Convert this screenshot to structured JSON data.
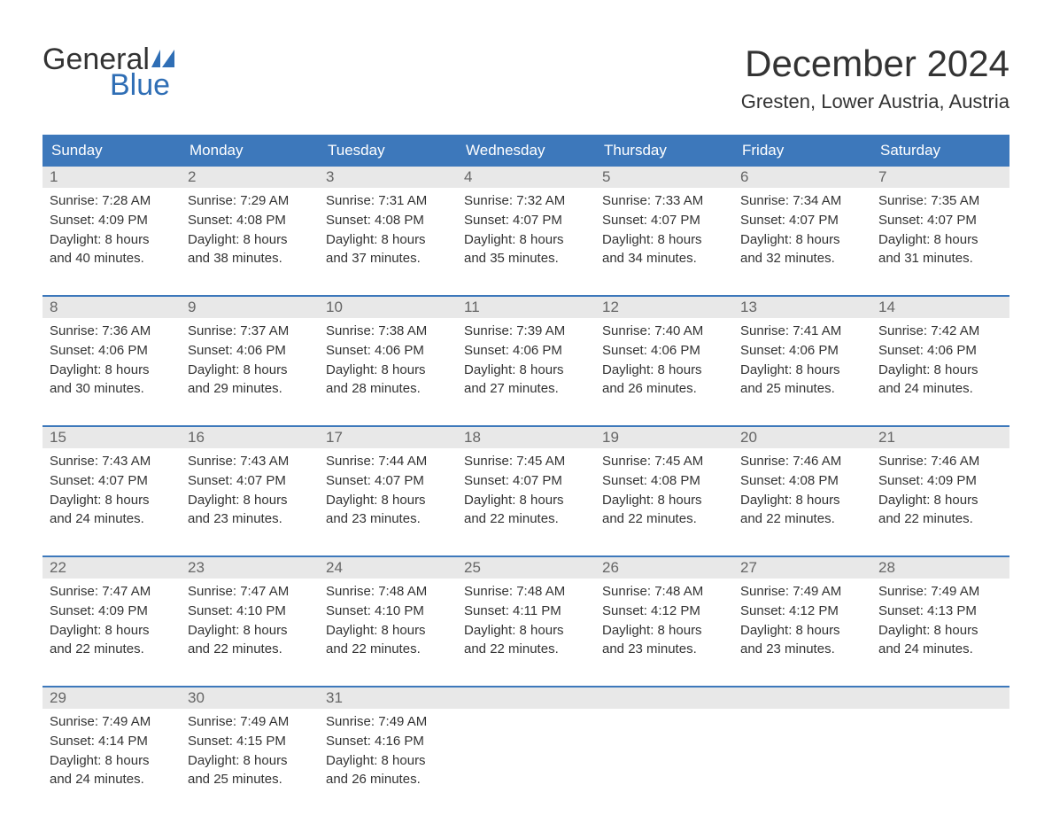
{
  "logo": {
    "word1": "General",
    "word2": "Blue",
    "icon_color": "#2f6eb5"
  },
  "title": "December 2024",
  "location": "Gresten, Lower Austria, Austria",
  "colors": {
    "header_bg": "#3d78bb",
    "header_text": "#ffffff",
    "daynum_bg": "#e8e8e8",
    "daynum_text": "#666666",
    "body_text": "#333333",
    "rule": "#3d78bb"
  },
  "day_headers": [
    "Sunday",
    "Monday",
    "Tuesday",
    "Wednesday",
    "Thursday",
    "Friday",
    "Saturday"
  ],
  "weeks": [
    [
      {
        "n": "1",
        "sunrise": "Sunrise: 7:28 AM",
        "sunset": "Sunset: 4:09 PM",
        "d1": "Daylight: 8 hours",
        "d2": "and 40 minutes."
      },
      {
        "n": "2",
        "sunrise": "Sunrise: 7:29 AM",
        "sunset": "Sunset: 4:08 PM",
        "d1": "Daylight: 8 hours",
        "d2": "and 38 minutes."
      },
      {
        "n": "3",
        "sunrise": "Sunrise: 7:31 AM",
        "sunset": "Sunset: 4:08 PM",
        "d1": "Daylight: 8 hours",
        "d2": "and 37 minutes."
      },
      {
        "n": "4",
        "sunrise": "Sunrise: 7:32 AM",
        "sunset": "Sunset: 4:07 PM",
        "d1": "Daylight: 8 hours",
        "d2": "and 35 minutes."
      },
      {
        "n": "5",
        "sunrise": "Sunrise: 7:33 AM",
        "sunset": "Sunset: 4:07 PM",
        "d1": "Daylight: 8 hours",
        "d2": "and 34 minutes."
      },
      {
        "n": "6",
        "sunrise": "Sunrise: 7:34 AM",
        "sunset": "Sunset: 4:07 PM",
        "d1": "Daylight: 8 hours",
        "d2": "and 32 minutes."
      },
      {
        "n": "7",
        "sunrise": "Sunrise: 7:35 AM",
        "sunset": "Sunset: 4:07 PM",
        "d1": "Daylight: 8 hours",
        "d2": "and 31 minutes."
      }
    ],
    [
      {
        "n": "8",
        "sunrise": "Sunrise: 7:36 AM",
        "sunset": "Sunset: 4:06 PM",
        "d1": "Daylight: 8 hours",
        "d2": "and 30 minutes."
      },
      {
        "n": "9",
        "sunrise": "Sunrise: 7:37 AM",
        "sunset": "Sunset: 4:06 PM",
        "d1": "Daylight: 8 hours",
        "d2": "and 29 minutes."
      },
      {
        "n": "10",
        "sunrise": "Sunrise: 7:38 AM",
        "sunset": "Sunset: 4:06 PM",
        "d1": "Daylight: 8 hours",
        "d2": "and 28 minutes."
      },
      {
        "n": "11",
        "sunrise": "Sunrise: 7:39 AM",
        "sunset": "Sunset: 4:06 PM",
        "d1": "Daylight: 8 hours",
        "d2": "and 27 minutes."
      },
      {
        "n": "12",
        "sunrise": "Sunrise: 7:40 AM",
        "sunset": "Sunset: 4:06 PM",
        "d1": "Daylight: 8 hours",
        "d2": "and 26 minutes."
      },
      {
        "n": "13",
        "sunrise": "Sunrise: 7:41 AM",
        "sunset": "Sunset: 4:06 PM",
        "d1": "Daylight: 8 hours",
        "d2": "and 25 minutes."
      },
      {
        "n": "14",
        "sunrise": "Sunrise: 7:42 AM",
        "sunset": "Sunset: 4:06 PM",
        "d1": "Daylight: 8 hours",
        "d2": "and 24 minutes."
      }
    ],
    [
      {
        "n": "15",
        "sunrise": "Sunrise: 7:43 AM",
        "sunset": "Sunset: 4:07 PM",
        "d1": "Daylight: 8 hours",
        "d2": "and 24 minutes."
      },
      {
        "n": "16",
        "sunrise": "Sunrise: 7:43 AM",
        "sunset": "Sunset: 4:07 PM",
        "d1": "Daylight: 8 hours",
        "d2": "and 23 minutes."
      },
      {
        "n": "17",
        "sunrise": "Sunrise: 7:44 AM",
        "sunset": "Sunset: 4:07 PM",
        "d1": "Daylight: 8 hours",
        "d2": "and 23 minutes."
      },
      {
        "n": "18",
        "sunrise": "Sunrise: 7:45 AM",
        "sunset": "Sunset: 4:07 PM",
        "d1": "Daylight: 8 hours",
        "d2": "and 22 minutes."
      },
      {
        "n": "19",
        "sunrise": "Sunrise: 7:45 AM",
        "sunset": "Sunset: 4:08 PM",
        "d1": "Daylight: 8 hours",
        "d2": "and 22 minutes."
      },
      {
        "n": "20",
        "sunrise": "Sunrise: 7:46 AM",
        "sunset": "Sunset: 4:08 PM",
        "d1": "Daylight: 8 hours",
        "d2": "and 22 minutes."
      },
      {
        "n": "21",
        "sunrise": "Sunrise: 7:46 AM",
        "sunset": "Sunset: 4:09 PM",
        "d1": "Daylight: 8 hours",
        "d2": "and 22 minutes."
      }
    ],
    [
      {
        "n": "22",
        "sunrise": "Sunrise: 7:47 AM",
        "sunset": "Sunset: 4:09 PM",
        "d1": "Daylight: 8 hours",
        "d2": "and 22 minutes."
      },
      {
        "n": "23",
        "sunrise": "Sunrise: 7:47 AM",
        "sunset": "Sunset: 4:10 PM",
        "d1": "Daylight: 8 hours",
        "d2": "and 22 minutes."
      },
      {
        "n": "24",
        "sunrise": "Sunrise: 7:48 AM",
        "sunset": "Sunset: 4:10 PM",
        "d1": "Daylight: 8 hours",
        "d2": "and 22 minutes."
      },
      {
        "n": "25",
        "sunrise": "Sunrise: 7:48 AM",
        "sunset": "Sunset: 4:11 PM",
        "d1": "Daylight: 8 hours",
        "d2": "and 22 minutes."
      },
      {
        "n": "26",
        "sunrise": "Sunrise: 7:48 AM",
        "sunset": "Sunset: 4:12 PM",
        "d1": "Daylight: 8 hours",
        "d2": "and 23 minutes."
      },
      {
        "n": "27",
        "sunrise": "Sunrise: 7:49 AM",
        "sunset": "Sunset: 4:12 PM",
        "d1": "Daylight: 8 hours",
        "d2": "and 23 minutes."
      },
      {
        "n": "28",
        "sunrise": "Sunrise: 7:49 AM",
        "sunset": "Sunset: 4:13 PM",
        "d1": "Daylight: 8 hours",
        "d2": "and 24 minutes."
      }
    ],
    [
      {
        "n": "29",
        "sunrise": "Sunrise: 7:49 AM",
        "sunset": "Sunset: 4:14 PM",
        "d1": "Daylight: 8 hours",
        "d2": "and 24 minutes."
      },
      {
        "n": "30",
        "sunrise": "Sunrise: 7:49 AM",
        "sunset": "Sunset: 4:15 PM",
        "d1": "Daylight: 8 hours",
        "d2": "and 25 minutes."
      },
      {
        "n": "31",
        "sunrise": "Sunrise: 7:49 AM",
        "sunset": "Sunset: 4:16 PM",
        "d1": "Daylight: 8 hours",
        "d2": "and 26 minutes."
      },
      null,
      null,
      null,
      null
    ]
  ]
}
